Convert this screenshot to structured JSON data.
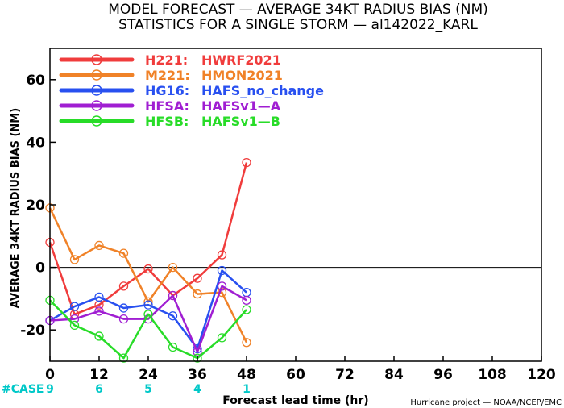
{
  "chart_data": {
    "type": "line",
    "title": "MODEL FORECAST — AVERAGE 34KT RADIUS BIAS (NM)",
    "subtitle": "STATISTICS FOR A SINGLE STORM — al142022_KARL",
    "xlabel": "Forecast lead time (hr)",
    "ylabel": "AVERAGE 34KT RADIUS BIAS (NM)",
    "xlim": [
      0,
      120
    ],
    "ylim": [
      -30,
      70
    ],
    "xticks": [
      0,
      12,
      24,
      36,
      48,
      60,
      72,
      84,
      96,
      108,
      120
    ],
    "yticks": [
      -20,
      0,
      20,
      40,
      60
    ],
    "zero_line": true,
    "legend_position": "top-left",
    "case_label": "#CASE",
    "case_color": "#00c8c8",
    "cases": [
      {
        "x": 0,
        "n": "9"
      },
      {
        "x": 12,
        "n": "6"
      },
      {
        "x": 24,
        "n": "5"
      },
      {
        "x": 36,
        "n": "4"
      },
      {
        "x": 48,
        "n": "1"
      }
    ],
    "credit": "Hurricane project — NOAA/NCEP/EMC",
    "series": [
      {
        "name": "H221:",
        "label": "HWRF2021",
        "color": "#f03c3c",
        "x": [
          0,
          6,
          12,
          18,
          24,
          30,
          36,
          42,
          48
        ],
        "y": [
          8,
          -15,
          -12,
          -6,
          -0.5,
          -9,
          -3.5,
          4,
          33.5
        ]
      },
      {
        "name": "M221:",
        "label": "HMON2021",
        "color": "#f08228",
        "x": [
          0,
          6,
          12,
          18,
          24,
          30,
          36,
          42,
          48
        ],
        "y": [
          19,
          2.5,
          7,
          4.5,
          -11,
          0,
          -8.5,
          -8,
          -24
        ]
      },
      {
        "name": "HG16:",
        "label": "HAFS_no_change",
        "color": "#2850f0",
        "x": [
          0,
          6,
          12,
          18,
          24,
          30,
          36,
          42,
          48
        ],
        "y": [
          -17,
          -12.5,
          -9.5,
          -13,
          -12,
          -15.5,
          -26,
          -1,
          -8
        ]
      },
      {
        "name": "HFSA:",
        "label": "HAFSv1—A",
        "color": "#a01ed2",
        "x": [
          0,
          6,
          12,
          18,
          24,
          30,
          36,
          42,
          48
        ],
        "y": [
          -17,
          -16.5,
          -14,
          -16.5,
          -16.5,
          -9,
          -27,
          -6,
          -10.5
        ]
      },
      {
        "name": "HFSB:",
        "label": "HAFSv1—B",
        "color": "#28dc28",
        "x": [
          0,
          6,
          12,
          18,
          24,
          30,
          36,
          42,
          48
        ],
        "y": [
          -10.5,
          -18.5,
          -22,
          -29,
          -15,
          -25.5,
          -29,
          -22.5,
          -13.5
        ]
      }
    ]
  }
}
